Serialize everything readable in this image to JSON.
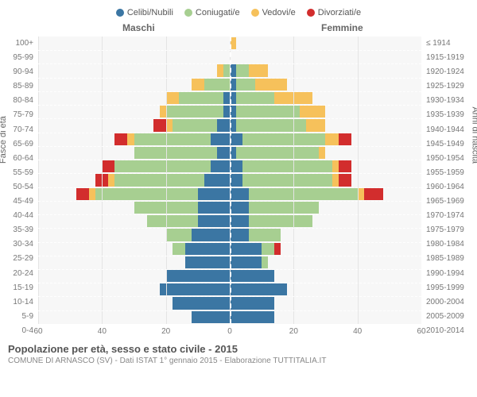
{
  "legend": {
    "items": [
      {
        "key": "celibi",
        "label": "Celibi/Nubili",
        "color": "#3b76a3"
      },
      {
        "key": "coniugati",
        "label": "Coniugati/e",
        "color": "#a7cf91"
      },
      {
        "key": "vedovi",
        "label": "Vedovi/e",
        "color": "#f6c15b"
      },
      {
        "key": "divorziati",
        "label": "Divorziati/e",
        "color": "#d22d2d"
      }
    ]
  },
  "headers": {
    "maschi": "Maschi",
    "femmine": "Femmine"
  },
  "axes": {
    "left_label": "Fasce di età",
    "right_label": "Anni di nascita",
    "xmax": 60,
    "x_ticks": [
      60,
      40,
      20,
      0,
      20,
      40,
      60
    ]
  },
  "colors": {
    "celibi": "#3b76a3",
    "coniugati": "#a7cf91",
    "vedovi": "#f6c15b",
    "divorziati": "#d22d2d",
    "plot_bg": "#f7f7f7",
    "grid": "#e4e4e4"
  },
  "rows": [
    {
      "age": "100+",
      "birth": "≤ 1914",
      "m": {
        "c": 0,
        "co": 0,
        "v": 0,
        "d": 0
      },
      "f": {
        "c": 0,
        "co": 0,
        "v": 2,
        "d": 0
      }
    },
    {
      "age": "95-99",
      "birth": "1915-1919",
      "m": {
        "c": 0,
        "co": 0,
        "v": 0,
        "d": 0
      },
      "f": {
        "c": 0,
        "co": 0,
        "v": 0,
        "d": 0
      }
    },
    {
      "age": "90-94",
      "birth": "1920-1924",
      "m": {
        "c": 0,
        "co": 2,
        "v": 2,
        "d": 0
      },
      "f": {
        "c": 2,
        "co": 4,
        "v": 6,
        "d": 0
      }
    },
    {
      "age": "85-89",
      "birth": "1925-1929",
      "m": {
        "c": 0,
        "co": 8,
        "v": 4,
        "d": 0
      },
      "f": {
        "c": 2,
        "co": 6,
        "v": 10,
        "d": 0
      }
    },
    {
      "age": "80-84",
      "birth": "1930-1934",
      "m": {
        "c": 2,
        "co": 14,
        "v": 4,
        "d": 0
      },
      "f": {
        "c": 2,
        "co": 12,
        "v": 12,
        "d": 0
      }
    },
    {
      "age": "75-79",
      "birth": "1935-1939",
      "m": {
        "c": 2,
        "co": 18,
        "v": 2,
        "d": 0
      },
      "f": {
        "c": 2,
        "co": 20,
        "v": 8,
        "d": 0
      }
    },
    {
      "age": "70-74",
      "birth": "1940-1944",
      "m": {
        "c": 4,
        "co": 14,
        "v": 2,
        "d": 4
      },
      "f": {
        "c": 2,
        "co": 22,
        "v": 6,
        "d": 0
      }
    },
    {
      "age": "65-69",
      "birth": "1945-1949",
      "m": {
        "c": 6,
        "co": 24,
        "v": 2,
        "d": 4
      },
      "f": {
        "c": 4,
        "co": 26,
        "v": 4,
        "d": 4
      }
    },
    {
      "age": "60-64",
      "birth": "1950-1954",
      "m": {
        "c": 4,
        "co": 26,
        "v": 0,
        "d": 0
      },
      "f": {
        "c": 2,
        "co": 26,
        "v": 2,
        "d": 0
      }
    },
    {
      "age": "55-59",
      "birth": "1955-1959",
      "m": {
        "c": 6,
        "co": 30,
        "v": 0,
        "d": 4
      },
      "f": {
        "c": 4,
        "co": 28,
        "v": 2,
        "d": 4
      }
    },
    {
      "age": "50-54",
      "birth": "1960-1964",
      "m": {
        "c": 8,
        "co": 28,
        "v": 2,
        "d": 4
      },
      "f": {
        "c": 4,
        "co": 28,
        "v": 2,
        "d": 4
      }
    },
    {
      "age": "45-49",
      "birth": "1965-1969",
      "m": {
        "c": 10,
        "co": 32,
        "v": 2,
        "d": 4
      },
      "f": {
        "c": 6,
        "co": 34,
        "v": 2,
        "d": 6
      }
    },
    {
      "age": "40-44",
      "birth": "1970-1974",
      "m": {
        "c": 10,
        "co": 20,
        "v": 0,
        "d": 0
      },
      "f": {
        "c": 6,
        "co": 22,
        "v": 0,
        "d": 0
      }
    },
    {
      "age": "35-39",
      "birth": "1975-1979",
      "m": {
        "c": 10,
        "co": 16,
        "v": 0,
        "d": 0
      },
      "f": {
        "c": 6,
        "co": 20,
        "v": 0,
        "d": 0
      }
    },
    {
      "age": "30-34",
      "birth": "1980-1984",
      "m": {
        "c": 12,
        "co": 8,
        "v": 0,
        "d": 0
      },
      "f": {
        "c": 6,
        "co": 10,
        "v": 0,
        "d": 0
      }
    },
    {
      "age": "25-29",
      "birth": "1985-1989",
      "m": {
        "c": 14,
        "co": 4,
        "v": 0,
        "d": 0
      },
      "f": {
        "c": 10,
        "co": 4,
        "v": 0,
        "d": 2
      }
    },
    {
      "age": "20-24",
      "birth": "1990-1994",
      "m": {
        "c": 14,
        "co": 0,
        "v": 0,
        "d": 0
      },
      "f": {
        "c": 10,
        "co": 2,
        "v": 0,
        "d": 0
      }
    },
    {
      "age": "15-19",
      "birth": "1995-1999",
      "m": {
        "c": 20,
        "co": 0,
        "v": 0,
        "d": 0
      },
      "f": {
        "c": 14,
        "co": 0,
        "v": 0,
        "d": 0
      }
    },
    {
      "age": "10-14",
      "birth": "2000-2004",
      "m": {
        "c": 22,
        "co": 0,
        "v": 0,
        "d": 0
      },
      "f": {
        "c": 18,
        "co": 0,
        "v": 0,
        "d": 0
      }
    },
    {
      "age": "5-9",
      "birth": "2005-2009",
      "m": {
        "c": 18,
        "co": 0,
        "v": 0,
        "d": 0
      },
      "f": {
        "c": 14,
        "co": 0,
        "v": 0,
        "d": 0
      }
    },
    {
      "age": "0-4",
      "birth": "2010-2014",
      "m": {
        "c": 12,
        "co": 0,
        "v": 0,
        "d": 0
      },
      "f": {
        "c": 14,
        "co": 0,
        "v": 0,
        "d": 0
      }
    }
  ],
  "footer": {
    "title": "Popolazione per età, sesso e stato civile - 2015",
    "subtitle": "COMUNE DI ARNASCO (SV) - Dati ISTAT 1° gennaio 2015 - Elaborazione TUTTITALIA.IT"
  }
}
